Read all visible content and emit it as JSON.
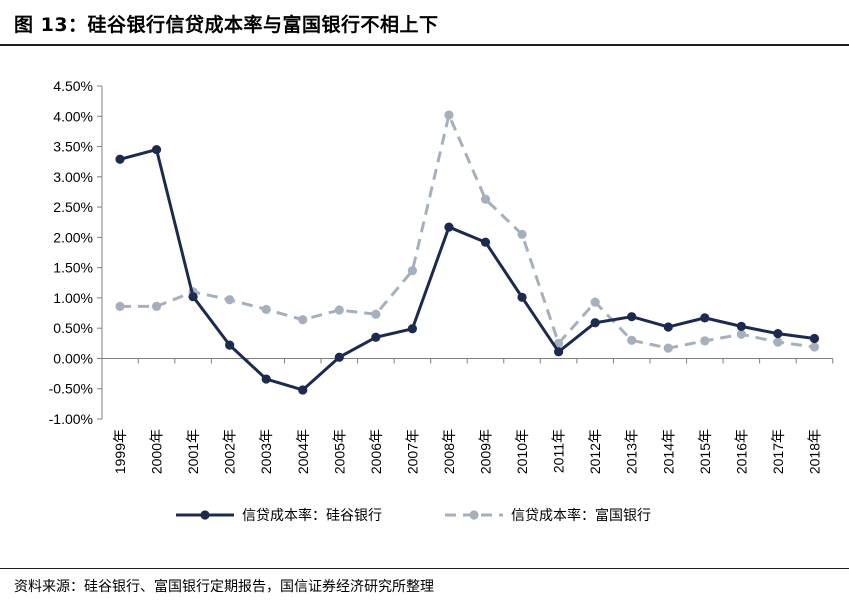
{
  "title": "图 13：硅谷银行信贷成本率与富国银行不相上下",
  "source": "资料来源：硅谷银行、富国银行定期报告，国信证券经济研究所整理",
  "chart_data": {
    "type": "line",
    "categories": [
      "1999年",
      "2000年",
      "2001年",
      "2002年",
      "2003年",
      "2004年",
      "2005年",
      "2006年",
      "2007年",
      "2008年",
      "2009年",
      "2010年",
      "2011年",
      "2012年",
      "2013年",
      "2014年",
      "2015年",
      "2016年",
      "2017年",
      "2018年"
    ],
    "series": [
      {
        "name": "信贷成本率：硅谷银行",
        "color": "#1b2a4e",
        "style": "solid",
        "values": [
          3.29,
          3.45,
          1.02,
          0.22,
          -0.34,
          -0.52,
          0.02,
          0.35,
          0.49,
          2.17,
          1.92,
          1.01,
          0.11,
          0.59,
          0.69,
          0.52,
          0.67,
          0.53,
          0.41,
          0.33
        ]
      },
      {
        "name": "信贷成本率：富国银行",
        "color": "#a6b0bd",
        "style": "dashed",
        "values": [
          0.86,
          0.86,
          1.1,
          0.97,
          0.81,
          0.64,
          0.8,
          0.73,
          1.45,
          4.02,
          2.63,
          2.05,
          0.25,
          0.93,
          0.3,
          0.17,
          0.29,
          0.4,
          0.27,
          0.19
        ]
      }
    ],
    "y_ticks": [
      "4.50%",
      "4.00%",
      "3.50%",
      "3.00%",
      "2.50%",
      "2.00%",
      "1.50%",
      "1.00%",
      "0.50%",
      "0.00%",
      "-0.50%",
      "-1.00%"
    ],
    "ylim": [
      -1.0,
      4.5
    ],
    "grid": false,
    "legend_position": "bottom-center"
  }
}
